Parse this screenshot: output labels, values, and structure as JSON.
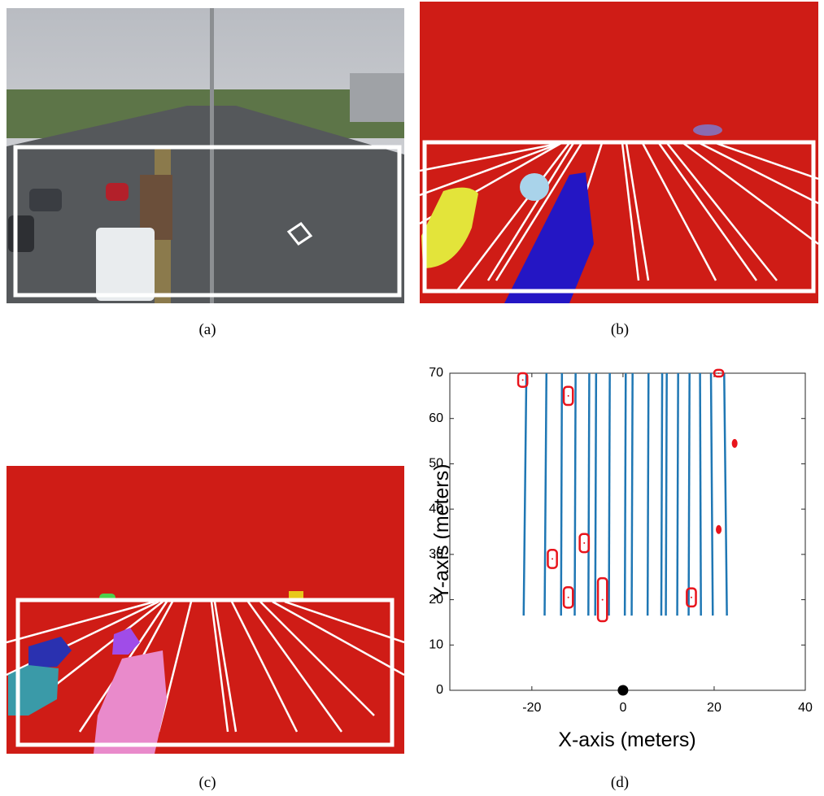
{
  "captions": [
    "(a)",
    "(b)",
    "(c)",
    "(d)"
  ],
  "chart_data": {
    "type": "scatter",
    "xlabel": "X-axis (meters)",
    "ylabel": "Y-axis (meters)",
    "xlim": [
      -38,
      40
    ],
    "ylim": [
      0,
      70
    ],
    "xticks": [
      -20,
      0,
      20,
      40
    ],
    "yticks": [
      0,
      10,
      20,
      30,
      40,
      50,
      60,
      70
    ],
    "lane_color": "#1f77b4",
    "vehicle_color": "#e8141c",
    "origin_color": "#000000",
    "lanes": [
      {
        "x": [
          -21.8,
          -21.2
        ],
        "y": [
          16.5,
          70
        ]
      },
      {
        "x": [
          -17.2,
          -16.8
        ],
        "y": [
          16.5,
          70
        ]
      },
      {
        "x": [
          -13.6,
          -13.4
        ],
        "y": [
          16.5,
          70
        ]
      },
      {
        "x": [
          -10.6,
          -10.4
        ],
        "y": [
          16.5,
          70
        ]
      },
      {
        "x": [
          -7.6,
          -7.4
        ],
        "y": [
          16.5,
          70
        ]
      },
      {
        "x": [
          -6.1,
          -5.9
        ],
        "y": [
          16.5,
          70
        ]
      },
      {
        "x": [
          -3.1,
          -2.9
        ],
        "y": [
          16.5,
          70
        ]
      },
      {
        "x": [
          0.4,
          0.6
        ],
        "y": [
          16.5,
          70
        ]
      },
      {
        "x": [
          1.9,
          2.1
        ],
        "y": [
          16.5,
          70
        ]
      },
      {
        "x": [
          5.4,
          5.6
        ],
        "y": [
          16.5,
          70
        ]
      },
      {
        "x": [
          8.4,
          8.6
        ],
        "y": [
          16.5,
          70
        ]
      },
      {
        "x": [
          9.4,
          9.6
        ],
        "y": [
          16.5,
          70
        ]
      },
      {
        "x": [
          11.9,
          12.1
        ],
        "y": [
          16.5,
          70
        ]
      },
      {
        "x": [
          14.4,
          14.6
        ],
        "y": [
          16.5,
          70
        ]
      },
      {
        "x": [
          17.1,
          16.9
        ],
        "y": [
          16.5,
          70
        ]
      },
      {
        "x": [
          19.7,
          19.3
        ],
        "y": [
          16.5,
          70
        ]
      },
      {
        "x": [
          22.8,
          22.2
        ],
        "y": [
          16.5,
          70
        ]
      }
    ],
    "vehicles": [
      {
        "x": -22,
        "y": 68.5,
        "width": 2,
        "height": 3
      },
      {
        "x": -12,
        "y": 65,
        "width": 2,
        "height": 4
      },
      {
        "x": -15.5,
        "y": 29,
        "width": 2,
        "height": 4
      },
      {
        "x": -8.5,
        "y": 32.5,
        "width": 2,
        "height": 4
      },
      {
        "x": -12,
        "y": 20.5,
        "width": 2,
        "height": 4.5
      },
      {
        "x": -4.5,
        "y": 20,
        "width": 2,
        "height": 9.5
      },
      {
        "x": 15,
        "y": 20.5,
        "width": 2,
        "height": 4
      },
      {
        "x": 21,
        "y": 70,
        "width": 2,
        "height": 1.5
      }
    ],
    "points": {
      "x": [
        24.5,
        21
      ],
      "y": [
        54.5,
        35.5
      ]
    },
    "origin": {
      "x": 0,
      "y": 0
    }
  }
}
